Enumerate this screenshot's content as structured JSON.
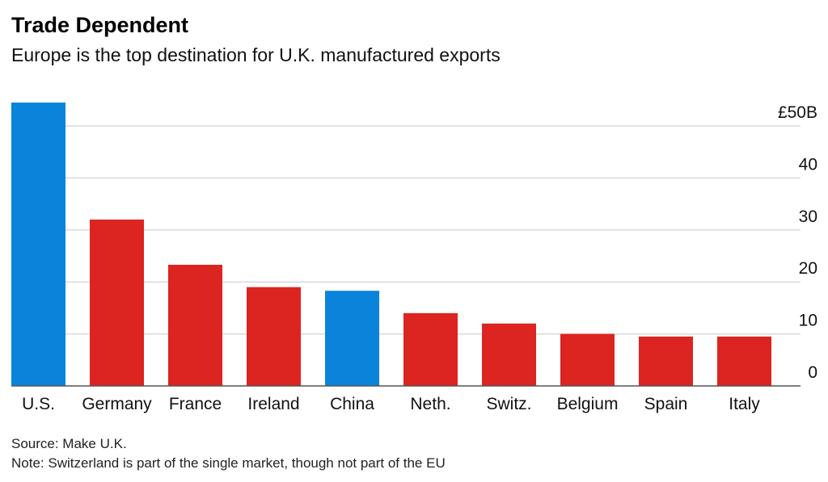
{
  "header": {
    "title": "Trade Dependent",
    "subtitle": "Europe is the top destination for U.K. manufactured exports"
  },
  "footer": {
    "source": "Source: Make U.K.",
    "note": "Note: Switzerland is part of the single market, though not part of the EU"
  },
  "colors": {
    "europe": "#dc2420",
    "non_europe": "#0a84db",
    "grid": "#d9d9d9",
    "axis": "#555555"
  },
  "chart_data": {
    "type": "bar",
    "title": "Trade Dependent",
    "subtitle": "Europe is the top destination for U.K. manufactured exports",
    "xlabel": "",
    "ylabel": "",
    "ylim": [
      0,
      50
    ],
    "y_ticks": [
      0,
      10,
      20,
      30,
      40,
      50
    ],
    "y_tick_labels": [
      "0",
      "10",
      "20",
      "30",
      "40",
      "£50B"
    ],
    "categories": [
      "U.S.",
      "Germany",
      "France",
      "Ireland",
      "China",
      "Neth.",
      "Switz.",
      "Belgium",
      "Spain",
      "Italy"
    ],
    "values": [
      54.5,
      32.0,
      23.3,
      19.0,
      18.3,
      14.0,
      12.0,
      10.0,
      9.5,
      9.5
    ],
    "groups": [
      "non_europe",
      "europe",
      "europe",
      "europe",
      "non_europe",
      "europe",
      "europe",
      "europe",
      "europe",
      "europe"
    ],
    "grid": true,
    "axis_side": "right"
  }
}
